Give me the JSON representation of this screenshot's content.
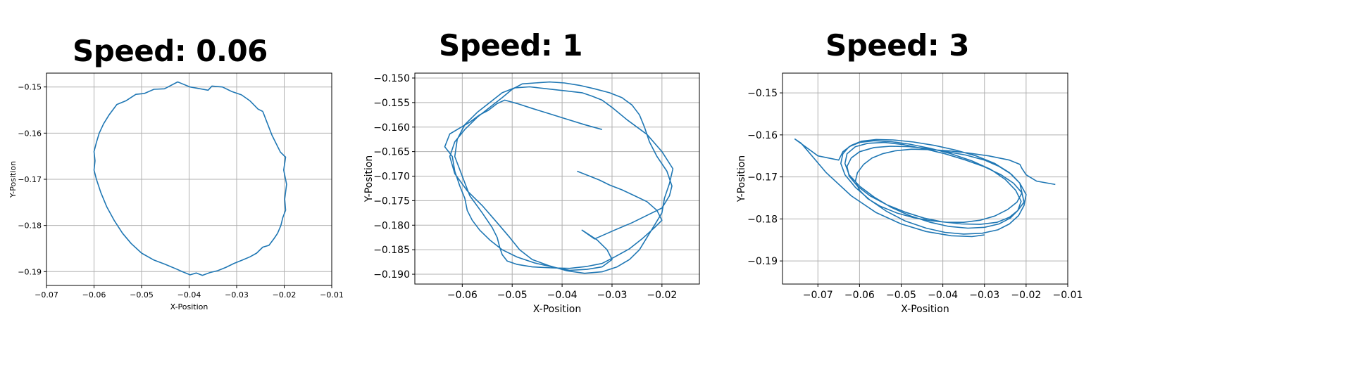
{
  "chart_data": [
    {
      "type": "line",
      "title": "Speed: 0.06",
      "xlabel": "X-Position",
      "ylabel": "Y-Position",
      "xlim": [
        -0.07,
        -0.01
      ],
      "ylim": [
        -0.193,
        -0.147
      ],
      "xticks": [
        -0.07,
        -0.06,
        -0.05,
        -0.04,
        -0.03,
        -0.02,
        -0.01
      ],
      "xtick_labels": [
        "−0.07",
        "−0.06",
        "−0.05",
        "−0.04",
        "−0.03",
        "−0.02",
        "−0.01"
      ],
      "yticks": [
        -0.15,
        -0.16,
        -0.17,
        -0.18,
        -0.19
      ],
      "ytick_labels": [
        "−0.15",
        "−0.16",
        "−0.17",
        "−0.18",
        "−0.19"
      ],
      "grid": true,
      "color": "#1f77b4",
      "series": [
        {
          "x": [
            -0.0245,
            -0.0226,
            -0.0208,
            -0.0197,
            -0.0201,
            -0.0195,
            -0.0199,
            -0.0197,
            -0.0203,
            -0.0207,
            -0.0214,
            -0.0221,
            -0.0232,
            -0.0245,
            -0.0258,
            -0.0272,
            -0.0288,
            -0.0305,
            -0.0323,
            -0.034,
            -0.0356,
            -0.0372,
            -0.0385,
            -0.0398,
            -0.0412,
            -0.043,
            -0.0451,
            -0.0474,
            -0.05,
            -0.0522,
            -0.054,
            -0.0557,
            -0.0573,
            -0.0586,
            -0.0595,
            -0.06,
            -0.0598,
            -0.06,
            -0.0595,
            -0.0589,
            -0.058,
            -0.0568,
            -0.0552,
            -0.0533,
            -0.0512,
            -0.0494,
            -0.0474,
            -0.0452,
            -0.0424,
            -0.0398,
            -0.036,
            -0.0352,
            -0.033,
            -0.031,
            -0.029,
            -0.0272,
            -0.0255,
            -0.0245
          ],
          "y": [
            -0.1553,
            -0.1604,
            -0.1641,
            -0.1652,
            -0.168,
            -0.1711,
            -0.1743,
            -0.1767,
            -0.1783,
            -0.18,
            -0.1817,
            -0.1828,
            -0.1843,
            -0.1847,
            -0.186,
            -0.1868,
            -0.1875,
            -0.1882,
            -0.1891,
            -0.1898,
            -0.1902,
            -0.1908,
            -0.1903,
            -0.1907,
            -0.1901,
            -0.1893,
            -0.1884,
            -0.1875,
            -0.186,
            -0.1839,
            -0.1817,
            -0.179,
            -0.176,
            -0.1728,
            -0.17,
            -0.168,
            -0.166,
            -0.164,
            -0.162,
            -0.16,
            -0.158,
            -0.156,
            -0.1538,
            -0.153,
            -0.1516,
            -0.1514,
            -0.1505,
            -0.1504,
            -0.1489,
            -0.15,
            -0.1507,
            -0.1498,
            -0.15,
            -0.151,
            -0.1517,
            -0.153,
            -0.1548,
            -0.1553
          ]
        }
      ]
    },
    {
      "type": "line",
      "title": "Speed: 1",
      "xlabel": "X-Position",
      "ylabel": "Y-Position",
      "xlim": [
        -0.0695,
        -0.0125
      ],
      "ylim": [
        -0.192,
        -0.149
      ],
      "xticks": [
        -0.06,
        -0.05,
        -0.04,
        -0.03,
        -0.02
      ],
      "xtick_labels": [
        "−0.06",
        "−0.05",
        "−0.04",
        "−0.03",
        "−0.02"
      ],
      "yticks": [
        -0.15,
        -0.155,
        -0.16,
        -0.165,
        -0.17,
        -0.175,
        -0.18,
        -0.185,
        -0.19
      ],
      "ytick_labels": [
        "−0.150",
        "−0.155",
        "−0.160",
        "−0.165",
        "−0.170",
        "−0.175",
        "−0.180",
        "−0.185",
        "−0.190"
      ],
      "grid": true,
      "color": "#1f77b4",
      "series": [
        {
          "x": [
            -0.032,
            -0.0355,
            -0.039,
            -0.0425,
            -0.046,
            -0.049,
            -0.0515,
            -0.053,
            -0.0548,
            -0.0565,
            -0.0585,
            -0.0605,
            -0.0625,
            -0.0635,
            -0.062,
            -0.0615,
            -0.0605,
            -0.0595,
            -0.059,
            -0.058,
            -0.0565,
            -0.0545,
            -0.052,
            -0.049,
            -0.0455,
            -0.042,
            -0.0385,
            -0.035,
            -0.032,
            -0.03,
            -0.031,
            -0.033,
            -0.036,
            -0.0335,
            -0.0295,
            -0.026,
            -0.023,
            -0.02,
            -0.0185,
            -0.018,
            -0.019,
            -0.021,
            -0.0225,
            -0.0235,
            -0.0245,
            -0.026,
            -0.028,
            -0.0305,
            -0.0335,
            -0.0365,
            -0.0395,
            -0.0425,
            -0.0455,
            -0.048,
            -0.05,
            -0.052,
            -0.0545,
            -0.057,
            -0.0595,
            -0.0615,
            -0.0625,
            -0.0615,
            -0.059,
            -0.056,
            -0.053,
            -0.0505,
            -0.0485,
            -0.046,
            -0.0425,
            -0.039,
            -0.0355,
            -0.032,
            -0.029,
            -0.0265,
            -0.0245,
            -0.023,
            -0.0215,
            -0.02,
            -0.0195,
            -0.0185,
            -0.0178,
            -0.02,
            -0.023,
            -0.027,
            -0.03,
            -0.032,
            -0.034,
            -0.036,
            -0.0395,
            -0.043,
            -0.0465,
            -0.0495,
            -0.052,
            -0.0545,
            -0.057,
            -0.0595,
            -0.061,
            -0.0615,
            -0.06,
            -0.0585,
            -0.056,
            -0.054,
            -0.053,
            -0.0525,
            -0.052,
            -0.051,
            -0.049,
            -0.046,
            -0.042,
            -0.0385,
            -0.035,
            -0.032,
            -0.0295,
            -0.0265,
            -0.024,
            -0.0215,
            -0.02,
            -0.021,
            -0.023,
            -0.0255,
            -0.028,
            -0.0305,
            -0.0325,
            -0.0345,
            -0.037
          ],
          "y": [
            -0.1605,
            -0.1595,
            -0.1584,
            -0.1573,
            -0.1562,
            -0.1552,
            -0.1545,
            -0.1552,
            -0.1566,
            -0.1575,
            -0.159,
            -0.1602,
            -0.1614,
            -0.164,
            -0.166,
            -0.169,
            -0.172,
            -0.1745,
            -0.177,
            -0.179,
            -0.181,
            -0.183,
            -0.185,
            -0.1865,
            -0.1877,
            -0.1885,
            -0.1892,
            -0.189,
            -0.1885,
            -0.187,
            -0.185,
            -0.183,
            -0.181,
            -0.1828,
            -0.181,
            -0.1795,
            -0.178,
            -0.1765,
            -0.174,
            -0.172,
            -0.169,
            -0.166,
            -0.163,
            -0.16,
            -0.1575,
            -0.1555,
            -0.154,
            -0.153,
            -0.1522,
            -0.1515,
            -0.151,
            -0.1508,
            -0.151,
            -0.1512,
            -0.1523,
            -0.154,
            -0.156,
            -0.158,
            -0.1605,
            -0.163,
            -0.166,
            -0.1695,
            -0.173,
            -0.176,
            -0.1795,
            -0.1825,
            -0.185,
            -0.187,
            -0.1883,
            -0.1893,
            -0.1898,
            -0.1895,
            -0.1885,
            -0.187,
            -0.185,
            -0.1825,
            -0.18,
            -0.1775,
            -0.1745,
            -0.1715,
            -0.1685,
            -0.165,
            -0.1615,
            -0.1585,
            -0.156,
            -0.1545,
            -0.1537,
            -0.153,
            -0.1526,
            -0.1522,
            -0.1518,
            -0.152,
            -0.153,
            -0.155,
            -0.157,
            -0.1595,
            -0.1625,
            -0.166,
            -0.17,
            -0.174,
            -0.1775,
            -0.1805,
            -0.1825,
            -0.1845,
            -0.186,
            -0.1873,
            -0.188,
            -0.1885,
            -0.1887,
            -0.1888,
            -0.1884,
            -0.1878,
            -0.1865,
            -0.1848,
            -0.1828,
            -0.1805,
            -0.179,
            -0.177,
            -0.1752,
            -0.174,
            -0.1728,
            -0.1718,
            -0.1708,
            -0.17,
            -0.169
          ]
        }
      ]
    },
    {
      "type": "line",
      "title": "Speed: 3",
      "xlabel": "X-Position",
      "ylabel": "Y-Position",
      "xlim": [
        -0.0785,
        -0.01
      ],
      "ylim": [
        -0.1955,
        -0.1453
      ],
      "xticks": [
        -0.07,
        -0.06,
        -0.05,
        -0.04,
        -0.03,
        -0.02,
        -0.01
      ],
      "xtick_labels": [
        "−0.07",
        "−0.06",
        "−0.05",
        "−0.04",
        "−0.03",
        "−0.02",
        "−0.01"
      ],
      "yticks": [
        -0.15,
        -0.16,
        -0.17,
        -0.18,
        -0.19
      ],
      "ytick_labels": [
        "−0.15",
        "−0.16",
        "−0.17",
        "−0.18",
        "−0.19"
      ],
      "grid": true,
      "color": "#1f77b4",
      "series": [
        {
          "x": [
            -0.013,
            -0.0175,
            -0.02,
            -0.021,
            -0.0215,
            -0.024,
            -0.029,
            -0.034,
            -0.0385,
            -0.043,
            -0.0475,
            -0.0515,
            -0.0545,
            -0.057,
            -0.059,
            -0.0605,
            -0.061,
            -0.06,
            -0.058,
            -0.055,
            -0.051,
            -0.047,
            -0.043,
            -0.039,
            -0.035,
            -0.031,
            -0.0275,
            -0.0245,
            -0.0222,
            -0.021,
            -0.0215,
            -0.0235,
            -0.0265,
            -0.03,
            -0.0345,
            -0.039,
            -0.0435,
            -0.048,
            -0.0525,
            -0.0565,
            -0.06,
            -0.062,
            -0.063,
            -0.0625,
            -0.0605,
            -0.0575,
            -0.0535,
            -0.049,
            -0.0445,
            -0.04,
            -0.0355,
            -0.031,
            -0.027,
            -0.024,
            -0.022,
            -0.0205,
            -0.021,
            -0.023,
            -0.026,
            -0.03,
            -0.0345,
            -0.0395,
            -0.0445,
            -0.0495,
            -0.054,
            -0.058,
            -0.061,
            -0.063,
            -0.0635,
            -0.0625,
            -0.06,
            -0.0565,
            -0.0525,
            -0.048,
            -0.043,
            -0.0385,
            -0.034,
            -0.03,
            -0.0265,
            -0.0238,
            -0.022,
            -0.0212,
            -0.0225,
            -0.025,
            -0.0285,
            -0.033,
            -0.038,
            -0.043,
            -0.048,
            -0.0525,
            -0.0565,
            -0.06,
            -0.0625,
            -0.064,
            -0.0645,
            -0.0635,
            -0.061,
            -0.0575,
            -0.0535,
            -0.049,
            -0.044,
            -0.0395,
            -0.035,
            -0.0305,
            -0.0268,
            -0.024,
            -0.0218,
            -0.0205,
            -0.02,
            -0.0215,
            -0.024,
            -0.0275,
            -0.032,
            -0.037,
            -0.042,
            -0.047,
            -0.052,
            -0.056,
            -0.0595,
            -0.062,
            -0.064,
            -0.065,
            -0.07,
            -0.0755,
            -0.074,
            -0.068,
            -0.062,
            -0.056,
            -0.05,
            -0.044,
            -0.038,
            -0.033,
            -0.03
          ],
          "y": [
            -0.1718,
            -0.171,
            -0.1695,
            -0.168,
            -0.167,
            -0.166,
            -0.165,
            -0.1643,
            -0.1638,
            -0.1635,
            -0.1634,
            -0.1638,
            -0.1645,
            -0.1655,
            -0.167,
            -0.169,
            -0.171,
            -0.1732,
            -0.1752,
            -0.177,
            -0.1786,
            -0.1797,
            -0.1804,
            -0.1808,
            -0.1808,
            -0.1803,
            -0.1793,
            -0.1778,
            -0.176,
            -0.1738,
            -0.1715,
            -0.1694,
            -0.1675,
            -0.166,
            -0.1648,
            -0.164,
            -0.1633,
            -0.1628,
            -0.1627,
            -0.163,
            -0.164,
            -0.1655,
            -0.1675,
            -0.1698,
            -0.1722,
            -0.1745,
            -0.1766,
            -0.1784,
            -0.1798,
            -0.1807,
            -0.1812,
            -0.1813,
            -0.1808,
            -0.1796,
            -0.178,
            -0.176,
            -0.1738,
            -0.1715,
            -0.1695,
            -0.1676,
            -0.166,
            -0.1645,
            -0.1633,
            -0.1623,
            -0.1618,
            -0.162,
            -0.1628,
            -0.1645,
            -0.1668,
            -0.1695,
            -0.1722,
            -0.1748,
            -0.1772,
            -0.1792,
            -0.1808,
            -0.1818,
            -0.1822,
            -0.182,
            -0.1812,
            -0.1798,
            -0.178,
            -0.1758,
            -0.1732,
            -0.1706,
            -0.1682,
            -0.1662,
            -0.1645,
            -0.1632,
            -0.1622,
            -0.1616,
            -0.1614,
            -0.1618,
            -0.1628,
            -0.1645,
            -0.1668,
            -0.1695,
            -0.1725,
            -0.1755,
            -0.1782,
            -0.1805,
            -0.1822,
            -0.1832,
            -0.1836,
            -0.1834,
            -0.1826,
            -0.1812,
            -0.1792,
            -0.1768,
            -0.1742,
            -0.1715,
            -0.169,
            -0.1668,
            -0.165,
            -0.1636,
            -0.1625,
            -0.1617,
            -0.1612,
            -0.1611,
            -0.1615,
            -0.1625,
            -0.164,
            -0.166,
            -0.165,
            -0.161,
            -0.162,
            -0.169,
            -0.1745,
            -0.1785,
            -0.1812,
            -0.183,
            -0.184,
            -0.1842,
            -0.1838
          ]
        }
      ]
    }
  ]
}
